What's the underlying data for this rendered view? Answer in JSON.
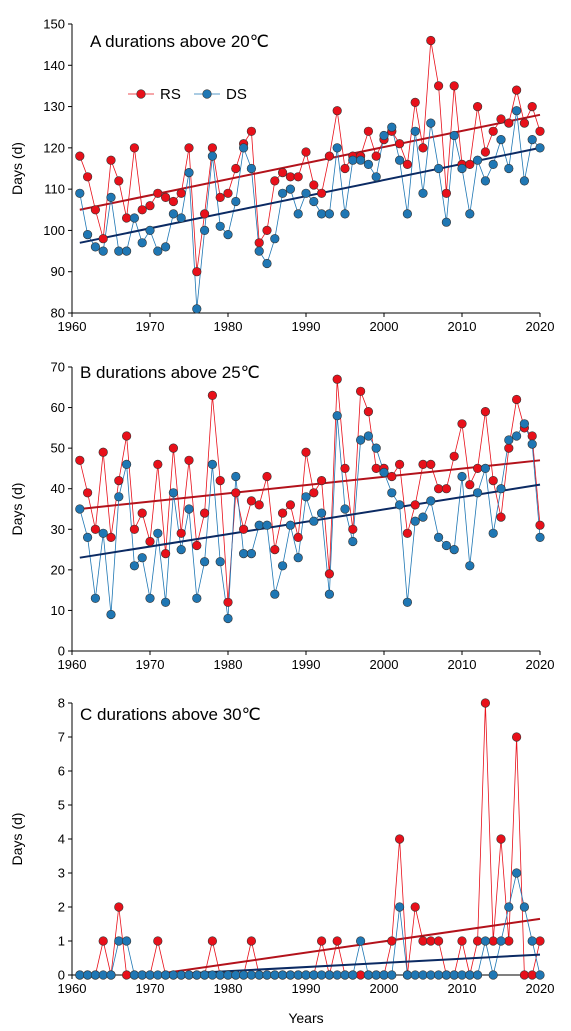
{
  "chart_data": [
    {
      "type": "line",
      "title": "A  durations above 20℃",
      "ylabel": "Days (d)",
      "xlabel": "",
      "xlim": [
        1960,
        2020
      ],
      "ylim": [
        80,
        150
      ],
      "xticks": [
        1960,
        1970,
        1980,
        1990,
        2000,
        2010,
        2020
      ],
      "yticks": [
        80,
        90,
        100,
        110,
        120,
        130,
        140,
        150
      ],
      "legend": {
        "position": "top-left",
        "entries": [
          "RS",
          "DS"
        ]
      },
      "x_start": 1961,
      "series": [
        {
          "name": "RS",
          "color": "#e8101a",
          "values": [
            118,
            113,
            105,
            98,
            117,
            112,
            103,
            120,
            105,
            106,
            109,
            108,
            107,
            109,
            120,
            90,
            104,
            120,
            108,
            109,
            115,
            121,
            124,
            97,
            100,
            112,
            114,
            113,
            113,
            119,
            111,
            109,
            118,
            129,
            115,
            118,
            118,
            124,
            118,
            122,
            124,
            121,
            116,
            131,
            120,
            146,
            135,
            109,
            135,
            116,
            116,
            130,
            119,
            124,
            127,
            126,
            134,
            126,
            130,
            124
          ],
          "trend": [
            105,
            128
          ]
        },
        {
          "name": "DS",
          "color": "#1f77b4",
          "values": [
            109,
            99,
            96,
            95,
            108,
            95,
            95,
            103,
            97,
            100,
            95,
            96,
            104,
            103,
            114,
            81,
            100,
            118,
            101,
            99,
            107,
            120,
            115,
            95,
            92,
            98,
            109,
            110,
            104,
            109,
            107,
            104,
            104,
            120,
            104,
            117,
            117,
            116,
            113,
            123,
            125,
            117,
            104,
            124,
            109,
            126,
            115,
            102,
            123,
            115,
            104,
            117,
            112,
            116,
            122,
            115,
            129,
            112,
            122,
            120
          ],
          "trend": [
            97,
            120
          ]
        }
      ]
    },
    {
      "type": "line",
      "title": "B  durations above 25℃",
      "ylabel": "Days (d)",
      "xlabel": "",
      "xlim": [
        1960,
        2020
      ],
      "ylim": [
        0,
        70
      ],
      "xticks": [
        1960,
        1970,
        1980,
        1990,
        2000,
        2010,
        2020
      ],
      "yticks": [
        0,
        10,
        20,
        30,
        40,
        50,
        60,
        70
      ],
      "x_start": 1961,
      "series": [
        {
          "name": "RS",
          "color": "#e8101a",
          "values": [
            47,
            39,
            30,
            49,
            28,
            42,
            53,
            30,
            34,
            27,
            46,
            24,
            50,
            29,
            47,
            26,
            34,
            63,
            42,
            12,
            39,
            30,
            37,
            36,
            43,
            25,
            34,
            36,
            28,
            49,
            39,
            42,
            19,
            67,
            45,
            30,
            64,
            59,
            45,
            45,
            43,
            46,
            29,
            36,
            46,
            46,
            40,
            40,
            48,
            56,
            41,
            45,
            59,
            42,
            33,
            50,
            62,
            55,
            53,
            31
          ],
          "trend": [
            35,
            47
          ]
        },
        {
          "name": "DS",
          "color": "#1f77b4",
          "values": [
            35,
            28,
            13,
            29,
            9,
            38,
            46,
            21,
            23,
            13,
            29,
            12,
            39,
            25,
            35,
            13,
            22,
            46,
            22,
            8,
            43,
            24,
            24,
            31,
            31,
            14,
            21,
            31,
            23,
            38,
            32,
            34,
            14,
            58,
            35,
            27,
            52,
            53,
            50,
            44,
            39,
            36,
            12,
            32,
            33,
            37,
            28,
            26,
            25,
            43,
            21,
            39,
            45,
            29,
            40,
            52,
            53,
            56,
            51,
            28
          ],
          "trend": [
            23,
            41
          ]
        }
      ]
    },
    {
      "type": "line",
      "title": "C  durations above 30℃",
      "ylabel": "Days (d)",
      "xlabel": "Years",
      "xlim": [
        1960,
        2020
      ],
      "ylim": [
        0,
        8
      ],
      "xticks": [
        1960,
        1970,
        1980,
        1990,
        2000,
        2010,
        2020
      ],
      "yticks": [
        0,
        1,
        2,
        3,
        4,
        5,
        6,
        7,
        8
      ],
      "x_start": 1961,
      "series": [
        {
          "name": "RS",
          "color": "#e8101a",
          "values": [
            0,
            0,
            0,
            1,
            0,
            2,
            0,
            0,
            0,
            0,
            1,
            0,
            0,
            0,
            0,
            0,
            0,
            1,
            0,
            0,
            0,
            0,
            1,
            0,
            0,
            0,
            0,
            0,
            0,
            0,
            0,
            1,
            0,
            1,
            0,
            0,
            0,
            0,
            0,
            0,
            1,
            4,
            0,
            2,
            1,
            1,
            1,
            0,
            0,
            1,
            0,
            1,
            8,
            1,
            4,
            1,
            7,
            0,
            0,
            1
          ],
          "trend": [
            -0.3,
            1.65
          ]
        },
        {
          "name": "DS",
          "color": "#1f77b4",
          "values": [
            0,
            0,
            0,
            0,
            0,
            1,
            1,
            0,
            0,
            0,
            0,
            0,
            0,
            0,
            0,
            0,
            0,
            0,
            0,
            0,
            0,
            0,
            0,
            0,
            0,
            0,
            0,
            0,
            0,
            0,
            0,
            0,
            0,
            0,
            0,
            0,
            1,
            0,
            0,
            0,
            0,
            2,
            0,
            0,
            0,
            0,
            0,
            0,
            0,
            0,
            0,
            0,
            1,
            0,
            1,
            2,
            3,
            2,
            1,
            0
          ],
          "trend": [
            -0.12,
            0.6
          ]
        }
      ]
    }
  ]
}
